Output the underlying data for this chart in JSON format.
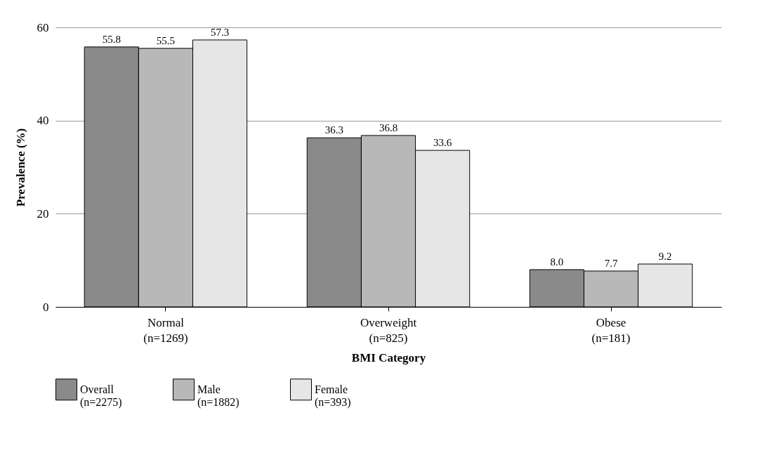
{
  "chart_data": {
    "type": "bar",
    "xlabel": "BMI Category",
    "ylabel": "Prevalence (%)",
    "categories": [
      "Normal (n=1269)",
      "Overweight (n=825)",
      "Obese (n=181)"
    ],
    "series": [
      {
        "name": "Overall (n=2275)",
        "color": "#8a8a8a",
        "values": [
          55.8,
          36.3,
          8.0
        ],
        "value_labels": [
          "55.8",
          "36.3",
          "8.0"
        ]
      },
      {
        "name": "Male (n=1882)",
        "color": "#b8b8b8",
        "values": [
          55.5,
          36.8,
          7.7
        ],
        "value_labels": [
          "55.5",
          "36.8",
          "7.7"
        ]
      },
      {
        "name": "Female (n=393)",
        "color": "#e6e6e6",
        "values": [
          57.3,
          33.6,
          9.2
        ],
        "value_labels": [
          "57.3",
          "33.6",
          "9.2"
        ]
      }
    ],
    "ylim": [
      0,
      60
    ],
    "yticks": [
      0,
      20,
      40,
      60
    ],
    "grid": "y",
    "legend": "bottom"
  }
}
